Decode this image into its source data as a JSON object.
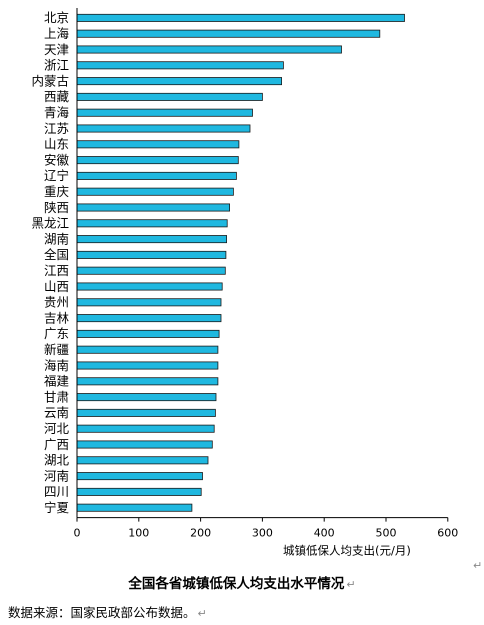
{
  "chart_data": {
    "type": "bar",
    "orientation": "horizontal",
    "categories": [
      "北京",
      "上海",
      "天津",
      "浙江",
      "内蒙古",
      "西藏",
      "青海",
      "江苏",
      "山东",
      "安徽",
      "辽宁",
      "重庆",
      "陕西",
      "黑龙江",
      "湖南",
      "全国",
      "江西",
      "山西",
      "贵州",
      "吉林",
      "广东",
      "新疆",
      "海南",
      "福建",
      "甘肃",
      "云南",
      "河北",
      "广西",
      "湖北",
      "河南",
      "四川",
      "宁夏"
    ],
    "values": [
      530,
      490,
      428,
      334,
      331,
      300,
      284,
      280,
      262,
      261,
      258,
      253,
      247,
      243,
      242,
      241,
      240,
      235,
      233,
      233,
      230,
      228,
      228,
      228,
      225,
      224,
      222,
      219,
      212,
      203,
      201,
      186
    ],
    "xlabel": "城镇低保人均支出(元/月)",
    "xlim": [
      0,
      600
    ],
    "xticks": [
      0,
      100,
      200,
      300,
      400,
      500,
      600
    ],
    "bar_color": "#1FB8E0",
    "bar_stroke": "#1a1a1a"
  },
  "caption": {
    "title": "全国各省城镇低保人均支出水平情况",
    "source": "数据来源：国家民政部公布数据。",
    "para_mark": "↵"
  }
}
